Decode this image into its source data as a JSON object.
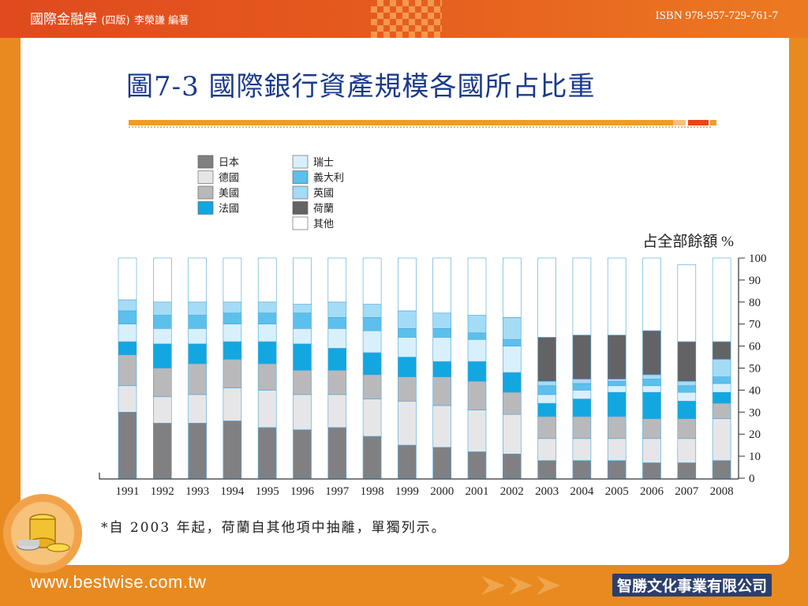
{
  "header": {
    "book_title": "國際金融學",
    "edition": "(四版)",
    "author": "李榮謙 編著",
    "isbn": "ISBN 978-957-729-761-7"
  },
  "slide": {
    "title": "圖7-3 國際銀行資產規模各國所占比重",
    "footnote": "*自 2003 年起，荷蘭自其他項中抽離，單獨列示。"
  },
  "footer": {
    "url": "www.bestwise.com.tw",
    "company": "智勝文化事業有限公司"
  },
  "colors": {
    "japan": "#808083",
    "germany": "#e6e6e8",
    "usa": "#b9b9bb",
    "france": "#12a7e0",
    "swiss": "#d8f0fc",
    "italy": "#5cc0ec",
    "uk": "#a4dcf6",
    "netherlands": "#636366",
    "other": "#ffffff"
  },
  "chart_data": {
    "type": "bar",
    "stacked": true,
    "ylabel": "占全部餘額 %",
    "ylim": [
      0,
      100
    ],
    "yticks": [
      0,
      10,
      20,
      30,
      40,
      50,
      60,
      70,
      80,
      90,
      100
    ],
    "legend_position": "top-left",
    "categories": [
      "1991",
      "1992",
      "1993",
      "1994",
      "1995",
      "1996",
      "1997",
      "1998",
      "1999",
      "2000",
      "2001",
      "2002",
      "2003",
      "2004",
      "2005",
      "2006",
      "2007",
      "2008"
    ],
    "series": [
      {
        "name": "日本",
        "key": "japan",
        "values": [
          30,
          25,
          25,
          26,
          23,
          22,
          23,
          19,
          15,
          14,
          12,
          11,
          8,
          8,
          8,
          7,
          7,
          8
        ]
      },
      {
        "name": "德國",
        "key": "germany",
        "values": [
          12,
          12,
          13,
          15,
          17,
          16,
          15,
          17,
          20,
          19,
          19,
          18,
          10,
          10,
          10,
          11,
          11,
          19
        ]
      },
      {
        "name": "美國",
        "key": "usa",
        "values": [
          14,
          13,
          14,
          13,
          12,
          11,
          11,
          11,
          11,
          13,
          13,
          10,
          10,
          10,
          10,
          9,
          9,
          7
        ]
      },
      {
        "name": "法國",
        "key": "france",
        "values": [
          6,
          11,
          9,
          8,
          10,
          12,
          10,
          10,
          9,
          7,
          9,
          9,
          6,
          8,
          11,
          12,
          8,
          5
        ]
      },
      {
        "name": "瑞士",
        "key": "swiss",
        "values": [
          8,
          7,
          7,
          8,
          8,
          7,
          9,
          10,
          9,
          11,
          10,
          12,
          4,
          4,
          3,
          3,
          4,
          4
        ]
      },
      {
        "name": "義大利",
        "key": "italy",
        "values": [
          6,
          6,
          6,
          5,
          5,
          7,
          5,
          6,
          4,
          4,
          3,
          3,
          4,
          3,
          2,
          3,
          3,
          3
        ]
      },
      {
        "name": "英國",
        "key": "uk",
        "values": [
          5,
          6,
          6,
          5,
          5,
          4,
          7,
          6,
          8,
          7,
          8,
          10,
          2,
          2,
          1,
          2,
          2,
          8
        ]
      },
      {
        "name": "荷蘭",
        "key": "netherlands",
        "values": [
          0,
          0,
          0,
          0,
          0,
          0,
          0,
          0,
          0,
          0,
          0,
          0,
          20,
          20,
          20,
          20,
          18,
          8
        ]
      },
      {
        "name": "其他",
        "key": "other",
        "values": [
          19,
          20,
          20,
          20,
          20,
          21,
          20,
          21,
          24,
          25,
          26,
          27,
          36,
          35,
          35,
          33,
          35,
          38
        ]
      }
    ]
  }
}
